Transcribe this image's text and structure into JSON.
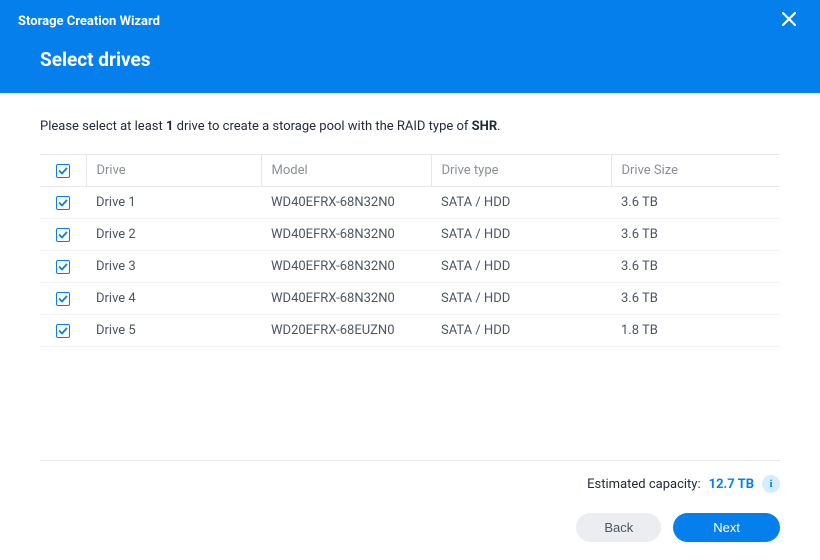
{
  "colors": {
    "primary": "#057feb",
    "header_text": "#ffffff",
    "border": "#e5e7eb",
    "row_border": "#f1f3f4",
    "text_muted": "#8a8f96",
    "text_body": "#4b5563",
    "info_bg": "#d6ecff",
    "btn_secondary_bg": "#ebedf0"
  },
  "header": {
    "wizard_title": "Storage Creation Wizard",
    "step_title": "Select drives"
  },
  "instruction": {
    "prefix": "Please select at least ",
    "min_count": "1",
    "mid": " drive to create a storage pool with the RAID type of ",
    "raid_type": "SHR",
    "suffix": "."
  },
  "table": {
    "columns": {
      "drive": "Drive",
      "model": "Model",
      "type": "Drive type",
      "size": "Drive Size"
    },
    "header_checked": true,
    "rows": [
      {
        "checked": true,
        "drive": "Drive 1",
        "model": "WD40EFRX-68N32N0",
        "type": "SATA / HDD",
        "size": "3.6 TB"
      },
      {
        "checked": true,
        "drive": "Drive 2",
        "model": "WD40EFRX-68N32N0",
        "type": "SATA / HDD",
        "size": "3.6 TB"
      },
      {
        "checked": true,
        "drive": "Drive 3",
        "model": "WD40EFRX-68N32N0",
        "type": "SATA / HDD",
        "size": "3.6 TB"
      },
      {
        "checked": true,
        "drive": "Drive 4",
        "model": "WD40EFRX-68N32N0",
        "type": "SATA / HDD",
        "size": "3.6 TB"
      },
      {
        "checked": true,
        "drive": "Drive 5",
        "model": "WD20EFRX-68EUZN0",
        "type": "SATA / HDD",
        "size": "1.8 TB"
      }
    ]
  },
  "footer": {
    "capacity_label": "Estimated capacity:",
    "capacity_value": "12.7 TB",
    "info_glyph": "i",
    "back_label": "Back",
    "next_label": "Next"
  }
}
